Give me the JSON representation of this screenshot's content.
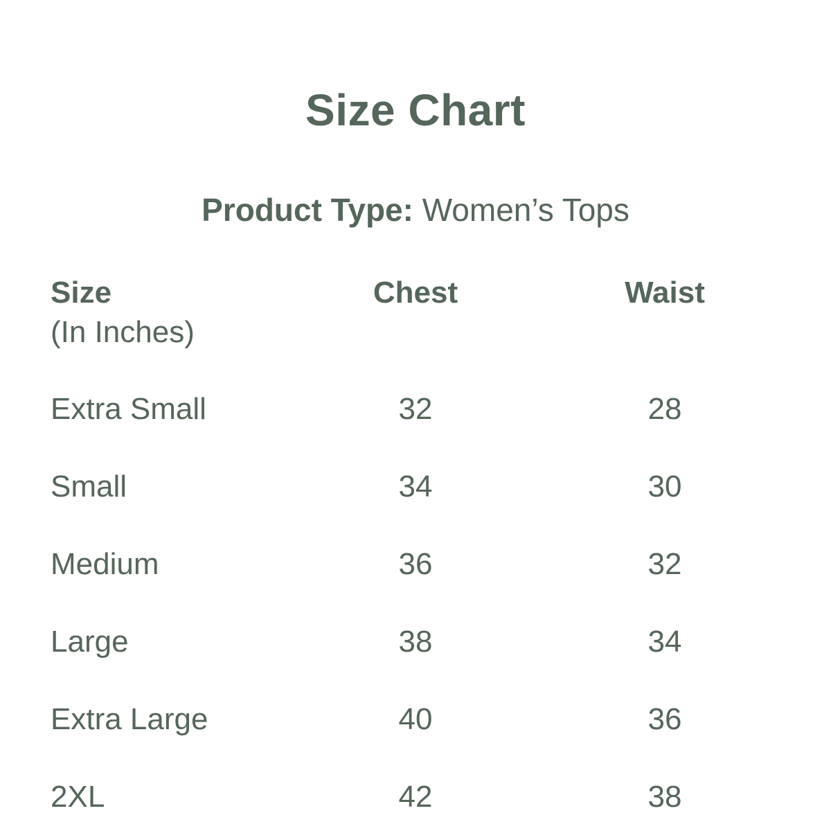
{
  "title": "Size Chart",
  "product_type_label": "Product Type:",
  "product_type_value": "Women’s Tops",
  "table": {
    "headers": {
      "size": "Size",
      "size_unit": "(In Inches)",
      "chest": "Chest",
      "waist": "Waist"
    },
    "rows": [
      {
        "size": "Extra Small",
        "chest": "32",
        "waist": "28"
      },
      {
        "size": "Small",
        "chest": "34",
        "waist": "30"
      },
      {
        "size": "Medium",
        "chest": "36",
        "waist": "32"
      },
      {
        "size": "Large",
        "chest": "38",
        "waist": "34"
      },
      {
        "size": "Extra Large",
        "chest": "40",
        "waist": "36"
      },
      {
        "size": "2XL",
        "chest": "42",
        "waist": "38"
      }
    ]
  },
  "colors": {
    "text": "#55665a",
    "background": "#ffffff"
  }
}
